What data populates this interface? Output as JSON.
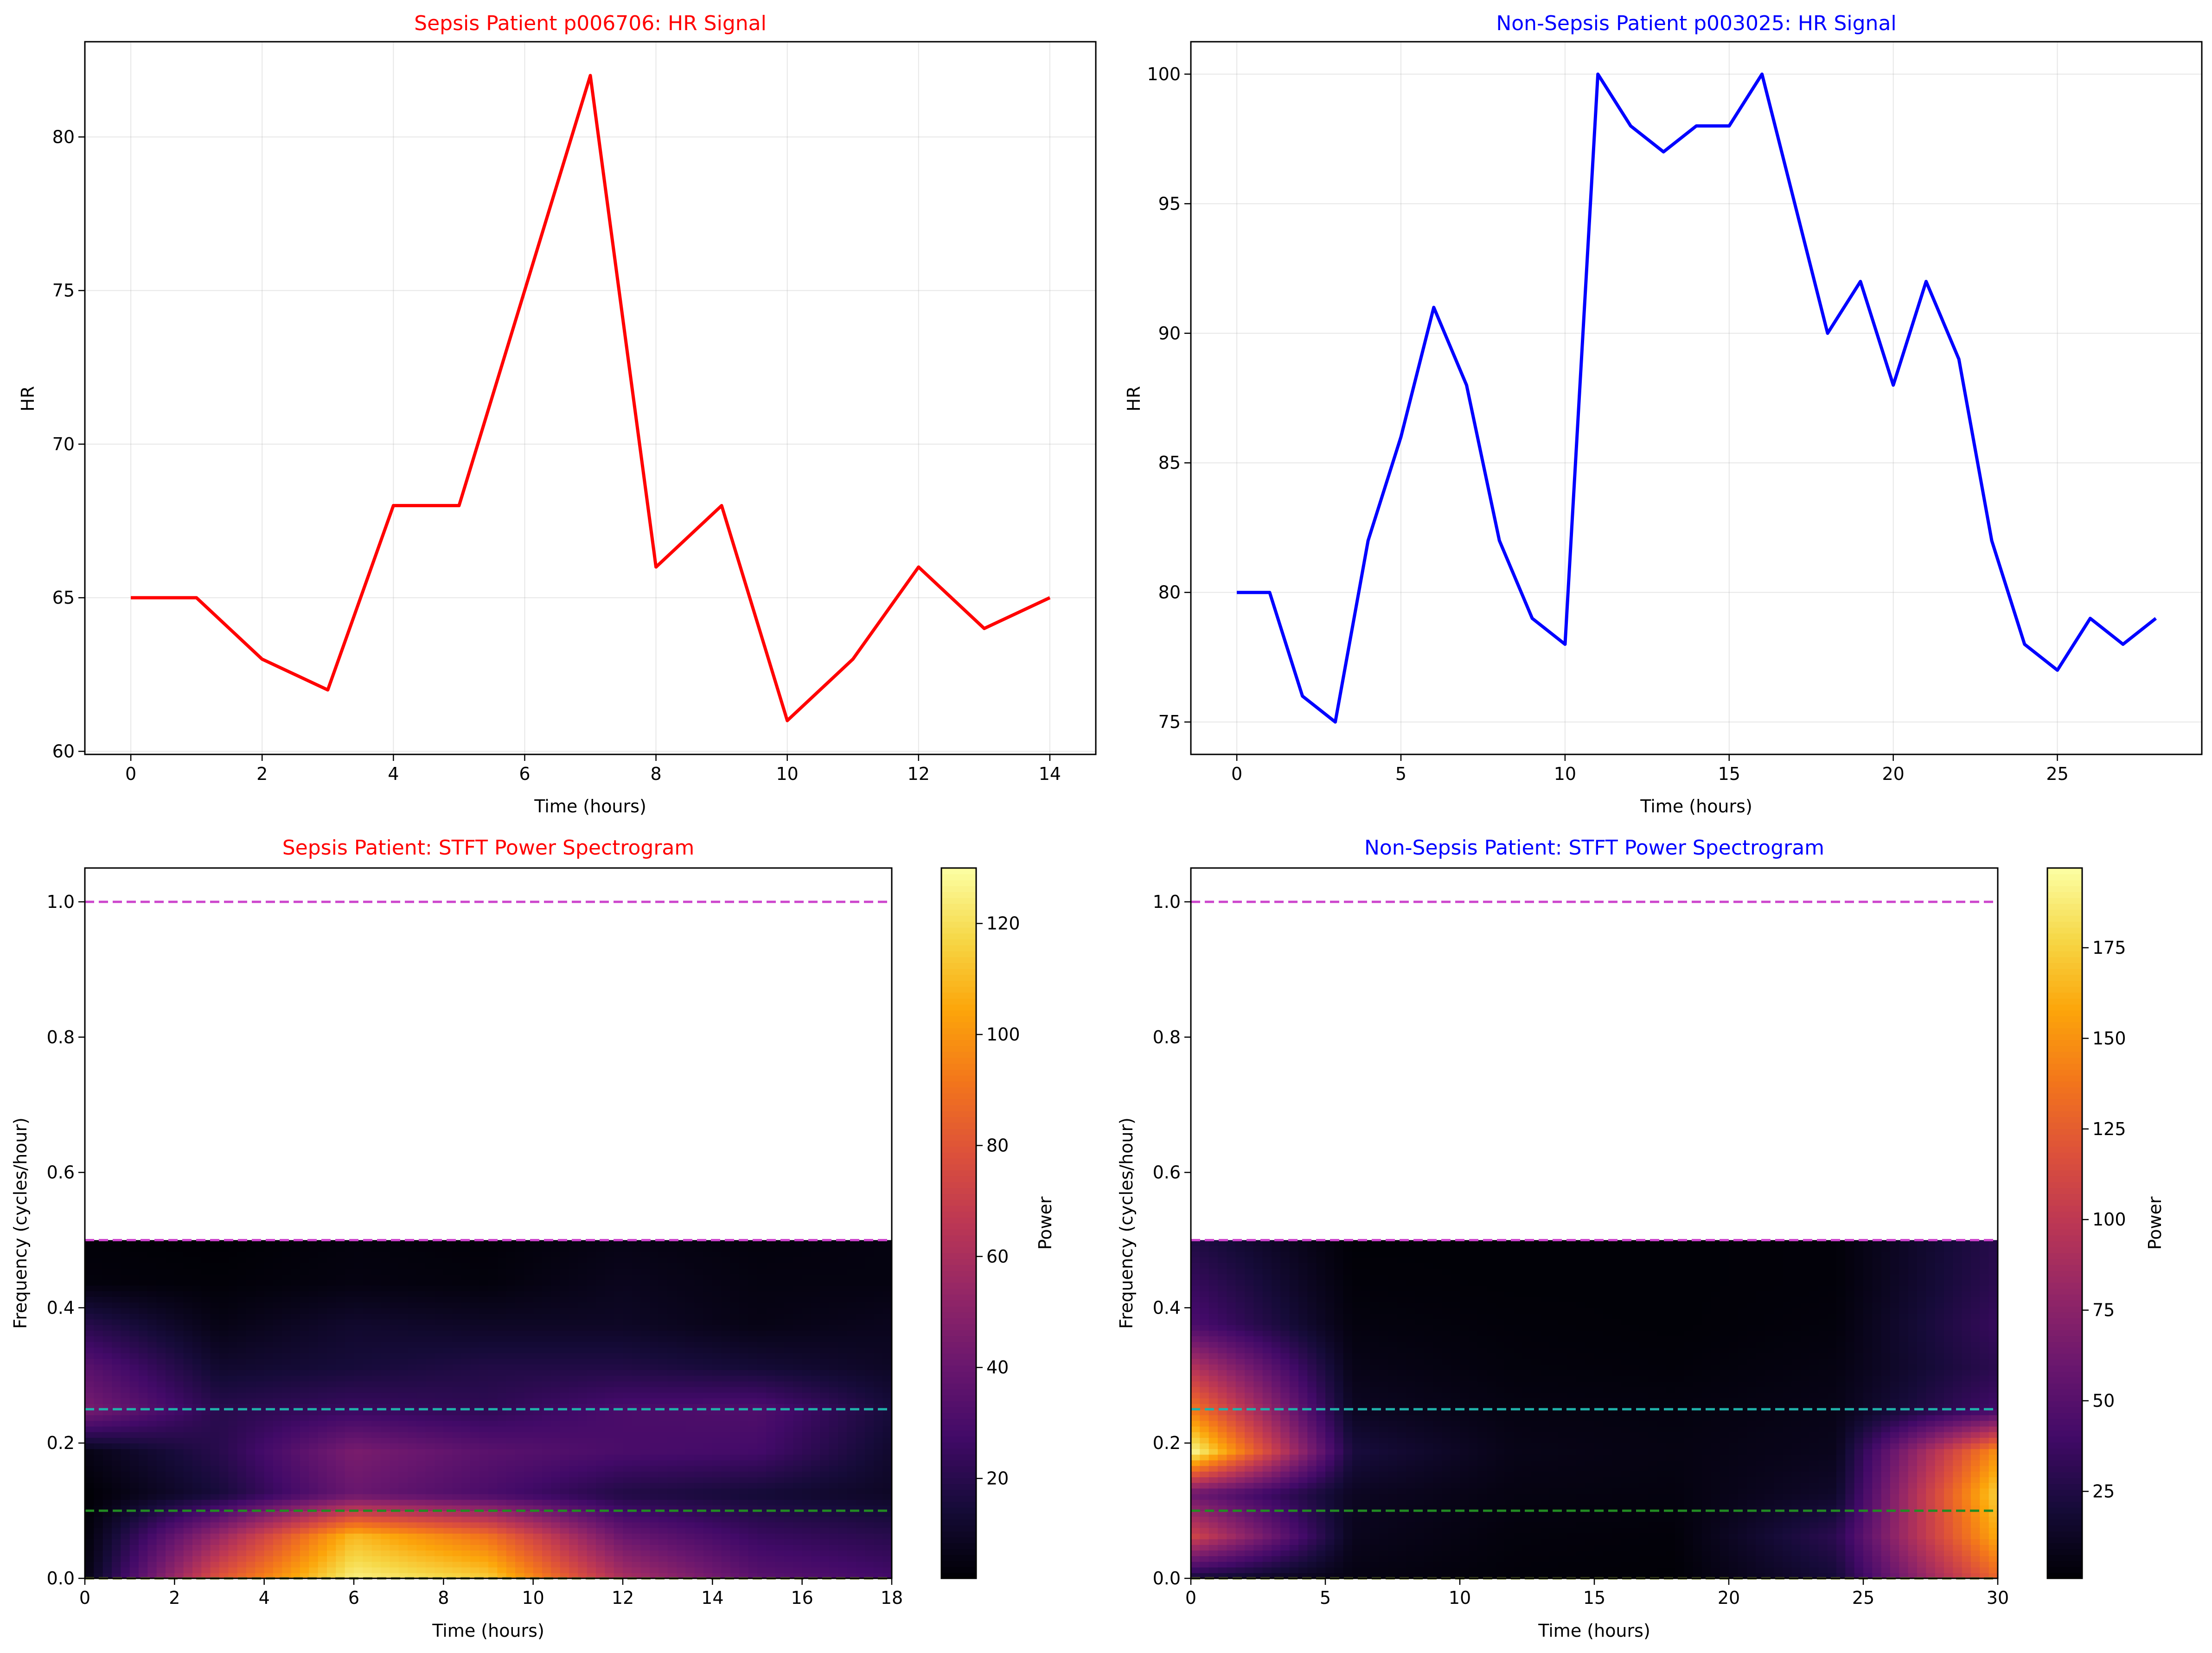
{
  "figure": {
    "background": "#ffffff"
  },
  "chart_data": [
    {
      "id": "sepsis-hr",
      "type": "line",
      "title": "Sepsis Patient p006706: HR Signal",
      "title_color": "#ff0000",
      "xlabel": "Time (hours)",
      "ylabel": "HR",
      "xlim": [
        -0.7,
        14.7
      ],
      "ylim": [
        59.9,
        83.1
      ],
      "xticks": [
        0,
        2,
        4,
        6,
        8,
        10,
        12,
        14
      ],
      "yticks": [
        60,
        65,
        70,
        75,
        80
      ],
      "grid": true,
      "series": [
        {
          "color": "#ff0000",
          "x": [
            0,
            1,
            2,
            3,
            4,
            5,
            6,
            7,
            8,
            9,
            10,
            11,
            12,
            13,
            14
          ],
          "y": [
            65,
            65,
            63,
            62,
            68,
            68,
            75,
            82,
            66,
            68,
            61,
            63,
            66,
            64,
            65
          ]
        }
      ]
    },
    {
      "id": "nonsepsis-hr",
      "type": "line",
      "title": "Non-Sepsis Patient p003025: HR Signal",
      "title_color": "#0000ff",
      "xlabel": "Time (hours)",
      "ylabel": "HR",
      "xlim": [
        -1.4,
        29.4
      ],
      "ylim": [
        73.75,
        101.25
      ],
      "xticks": [
        0,
        5,
        10,
        15,
        20,
        25
      ],
      "yticks": [
        75,
        80,
        85,
        90,
        95,
        100
      ],
      "grid": true,
      "series": [
        {
          "color": "#0000ff",
          "x": [
            0,
            1,
            2,
            3,
            4,
            5,
            6,
            7,
            8,
            9,
            10,
            11,
            12,
            13,
            14,
            15,
            16,
            17,
            18,
            19,
            20,
            21,
            22,
            23,
            24,
            25,
            26,
            27,
            28
          ],
          "y": [
            80,
            80,
            76,
            75,
            82,
            86,
            91,
            88,
            82,
            79,
            78,
            100,
            98,
            97,
            98,
            98,
            100,
            95,
            90,
            92,
            88,
            92,
            89,
            82,
            78,
            77,
            79,
            78,
            79
          ]
        }
      ]
    },
    {
      "id": "sepsis-stft",
      "type": "heatmap",
      "title": "Sepsis Patient: STFT Power Spectrogram",
      "title_color": "#ff0000",
      "xlabel": "Time (hours)",
      "ylabel": "Frequency (cycles/hour)",
      "xlim": [
        0,
        18
      ],
      "ylim": [
        0,
        1.05
      ],
      "xticks": [
        0,
        2,
        4,
        6,
        8,
        10,
        12,
        14,
        16,
        18
      ],
      "yticks": [
        0.0,
        0.2,
        0.4,
        0.6,
        0.8,
        1.0
      ],
      "colormap": "inferno",
      "spectrogram_frequency_max": 0.5,
      "times": [
        0,
        3,
        6,
        9,
        12,
        15,
        18
      ],
      "frequencies": [
        0.0,
        0.0625,
        0.125,
        0.1875,
        0.25,
        0.3125,
        0.375,
        0.4375,
        0.5
      ],
      "power": [
        [
          5,
          3,
          2,
          6,
          45,
          35,
          20,
          4,
          3
        ],
        [
          80,
          55,
          15,
          20,
          20,
          12,
          6,
          3,
          2
        ],
        [
          125,
          110,
          40,
          45,
          25,
          15,
          12,
          5,
          4
        ],
        [
          115,
          90,
          30,
          35,
          22,
          18,
          10,
          4,
          3
        ],
        [
          60,
          40,
          18,
          30,
          30,
          18,
          10,
          8,
          6
        ],
        [
          35,
          25,
          14,
          28,
          32,
          14,
          6,
          5,
          4
        ],
        [
          28,
          20,
          10,
          12,
          15,
          10,
          8,
          5,
          5
        ]
      ],
      "colorbar": {
        "label": "Power",
        "range": [
          2,
          130
        ],
        "ticks": [
          20,
          40,
          60,
          80,
          100,
          120
        ]
      },
      "hlines": [
        {
          "y": 1.0,
          "color": "#cc44cc"
        },
        {
          "y": 0.5,
          "color": "#cc44cc"
        },
        {
          "y": 0.25,
          "color": "#20b2aa"
        },
        {
          "y": 0.1,
          "color": "#228b22"
        },
        {
          "y": 0.0,
          "color": "#6b7d2a"
        }
      ]
    },
    {
      "id": "nonsepsis-stft",
      "type": "heatmap",
      "title": "Non-Sepsis Patient: STFT Power Spectrogram",
      "title_color": "#0000ff",
      "xlabel": "Time (hours)",
      "ylabel": "Frequency (cycles/hour)",
      "xlim": [
        0,
        30
      ],
      "ylim": [
        0,
        1.05
      ],
      "xticks": [
        0,
        5,
        10,
        15,
        20,
        25,
        30
      ],
      "yticks": [
        0.0,
        0.2,
        0.4,
        0.6,
        0.8,
        1.0
      ],
      "colormap": "inferno",
      "spectrogram_frequency_max": 0.5,
      "times": [
        0,
        6,
        12,
        18,
        24,
        30
      ],
      "frequencies": [
        0.0,
        0.0625,
        0.125,
        0.1875,
        0.25,
        0.3125,
        0.375,
        0.4375,
        0.5
      ],
      "power": [
        [
          20,
          110,
          60,
          195,
          140,
          95,
          45,
          35,
          25
        ],
        [
          6,
          10,
          12,
          22,
          12,
          8,
          5,
          3,
          2
        ],
        [
          3,
          4,
          6,
          8,
          6,
          4,
          3,
          2,
          2
        ],
        [
          2,
          3,
          5,
          6,
          5,
          3,
          2,
          2,
          2
        ],
        [
          20,
          30,
          15,
          10,
          8,
          6,
          4,
          3,
          3
        ],
        [
          130,
          160,
          175,
          150,
          40,
          30,
          35,
          30,
          28
        ]
      ],
      "colorbar": {
        "label": "Power",
        "range": [
          1,
          197
        ],
        "ticks": [
          25,
          50,
          75,
          100,
          125,
          150,
          175
        ]
      },
      "hlines": [
        {
          "y": 1.0,
          "color": "#cc44cc"
        },
        {
          "y": 0.5,
          "color": "#cc44cc"
        },
        {
          "y": 0.25,
          "color": "#20b2aa"
        },
        {
          "y": 0.1,
          "color": "#228b22"
        },
        {
          "y": 0.0,
          "color": "#6b7d2a"
        }
      ]
    }
  ]
}
